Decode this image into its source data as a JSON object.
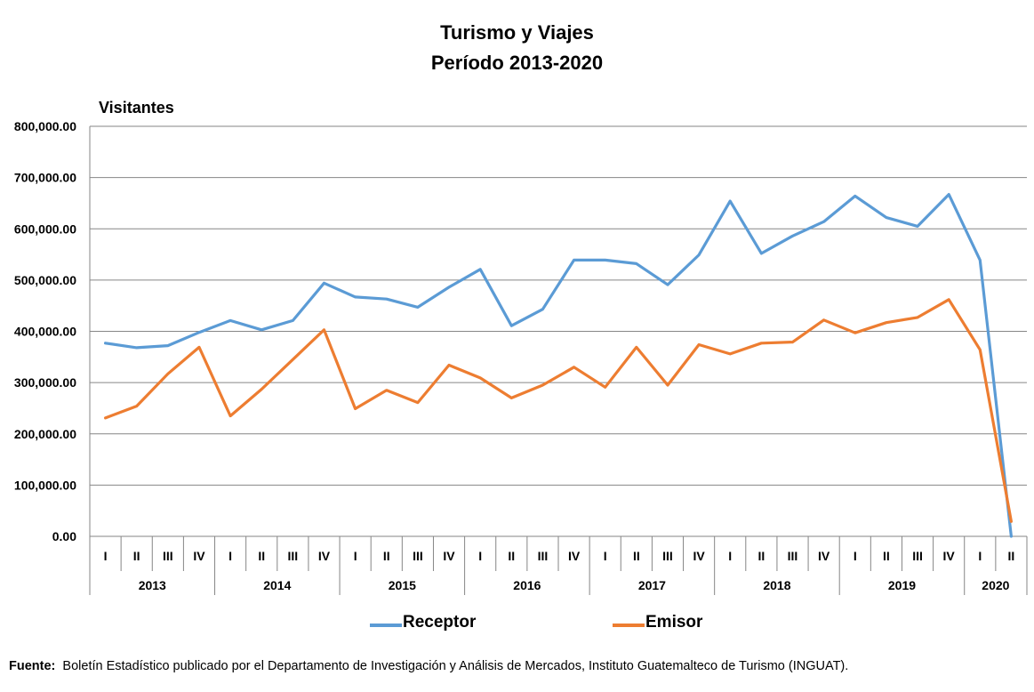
{
  "chart_data": {
    "type": "line",
    "title": "Turismo y Viajes",
    "subtitle": "Período 2013-2020",
    "ylabel": "Visitantes",
    "xlabel": "",
    "ylim": [
      0,
      800000
    ],
    "yticks": [
      "0.00",
      "100,000.00",
      "200,000.00",
      "300,000.00",
      "400,000.00",
      "500,000.00",
      "600,000.00",
      "700,000.00",
      "800,000.00"
    ],
    "grid": true,
    "legend_position": "bottom",
    "quarter_labels": [
      "I",
      "II",
      "III",
      "IV",
      "I",
      "II",
      "III",
      "IV",
      "I",
      "II",
      "III",
      "IV",
      "I",
      "II",
      "III",
      "IV",
      "I",
      "II",
      "III",
      "IV",
      "I",
      "II",
      "III",
      "IV",
      "I",
      "II",
      "III",
      "IV",
      "I",
      "II"
    ],
    "years": [
      {
        "label": "2013",
        "quarters": 4
      },
      {
        "label": "2014",
        "quarters": 4
      },
      {
        "label": "2015",
        "quarters": 4
      },
      {
        "label": "2016",
        "quarters": 4
      },
      {
        "label": "2017",
        "quarters": 4
      },
      {
        "label": "2018",
        "quarters": 4
      },
      {
        "label": "2019",
        "quarters": 4
      },
      {
        "label": "2020",
        "quarters": 2
      }
    ],
    "series": [
      {
        "name": "Receptor",
        "color": "#5b9bd5",
        "values": [
          377000,
          368000,
          372000,
          398000,
          421000,
          403000,
          421000,
          494000,
          467000,
          463000,
          447000,
          486000,
          521000,
          411000,
          443000,
          539000,
          539000,
          532000,
          491000,
          549000,
          654000,
          552000,
          586000,
          614000,
          664000,
          622000,
          605000,
          667000,
          539000,
          0
        ]
      },
      {
        "name": "Emisor",
        "color": "#ed7d31",
        "values": [
          231000,
          254000,
          317000,
          369000,
          235000,
          287000,
          345000,
          403000,
          249000,
          285000,
          261000,
          334000,
          309000,
          270000,
          295000,
          330000,
          291000,
          369000,
          295000,
          374000,
          356000,
          377000,
          379000,
          422000,
          397000,
          417000,
          427000,
          462000,
          364000,
          29000
        ]
      }
    ]
  },
  "source": {
    "label": "Fuente:",
    "text": "Boletín Estadístico publicado por el Departamento de Investigación y Análisis de Mercados, Instituto Guatemalteco de Turismo (INGUAT)."
  }
}
